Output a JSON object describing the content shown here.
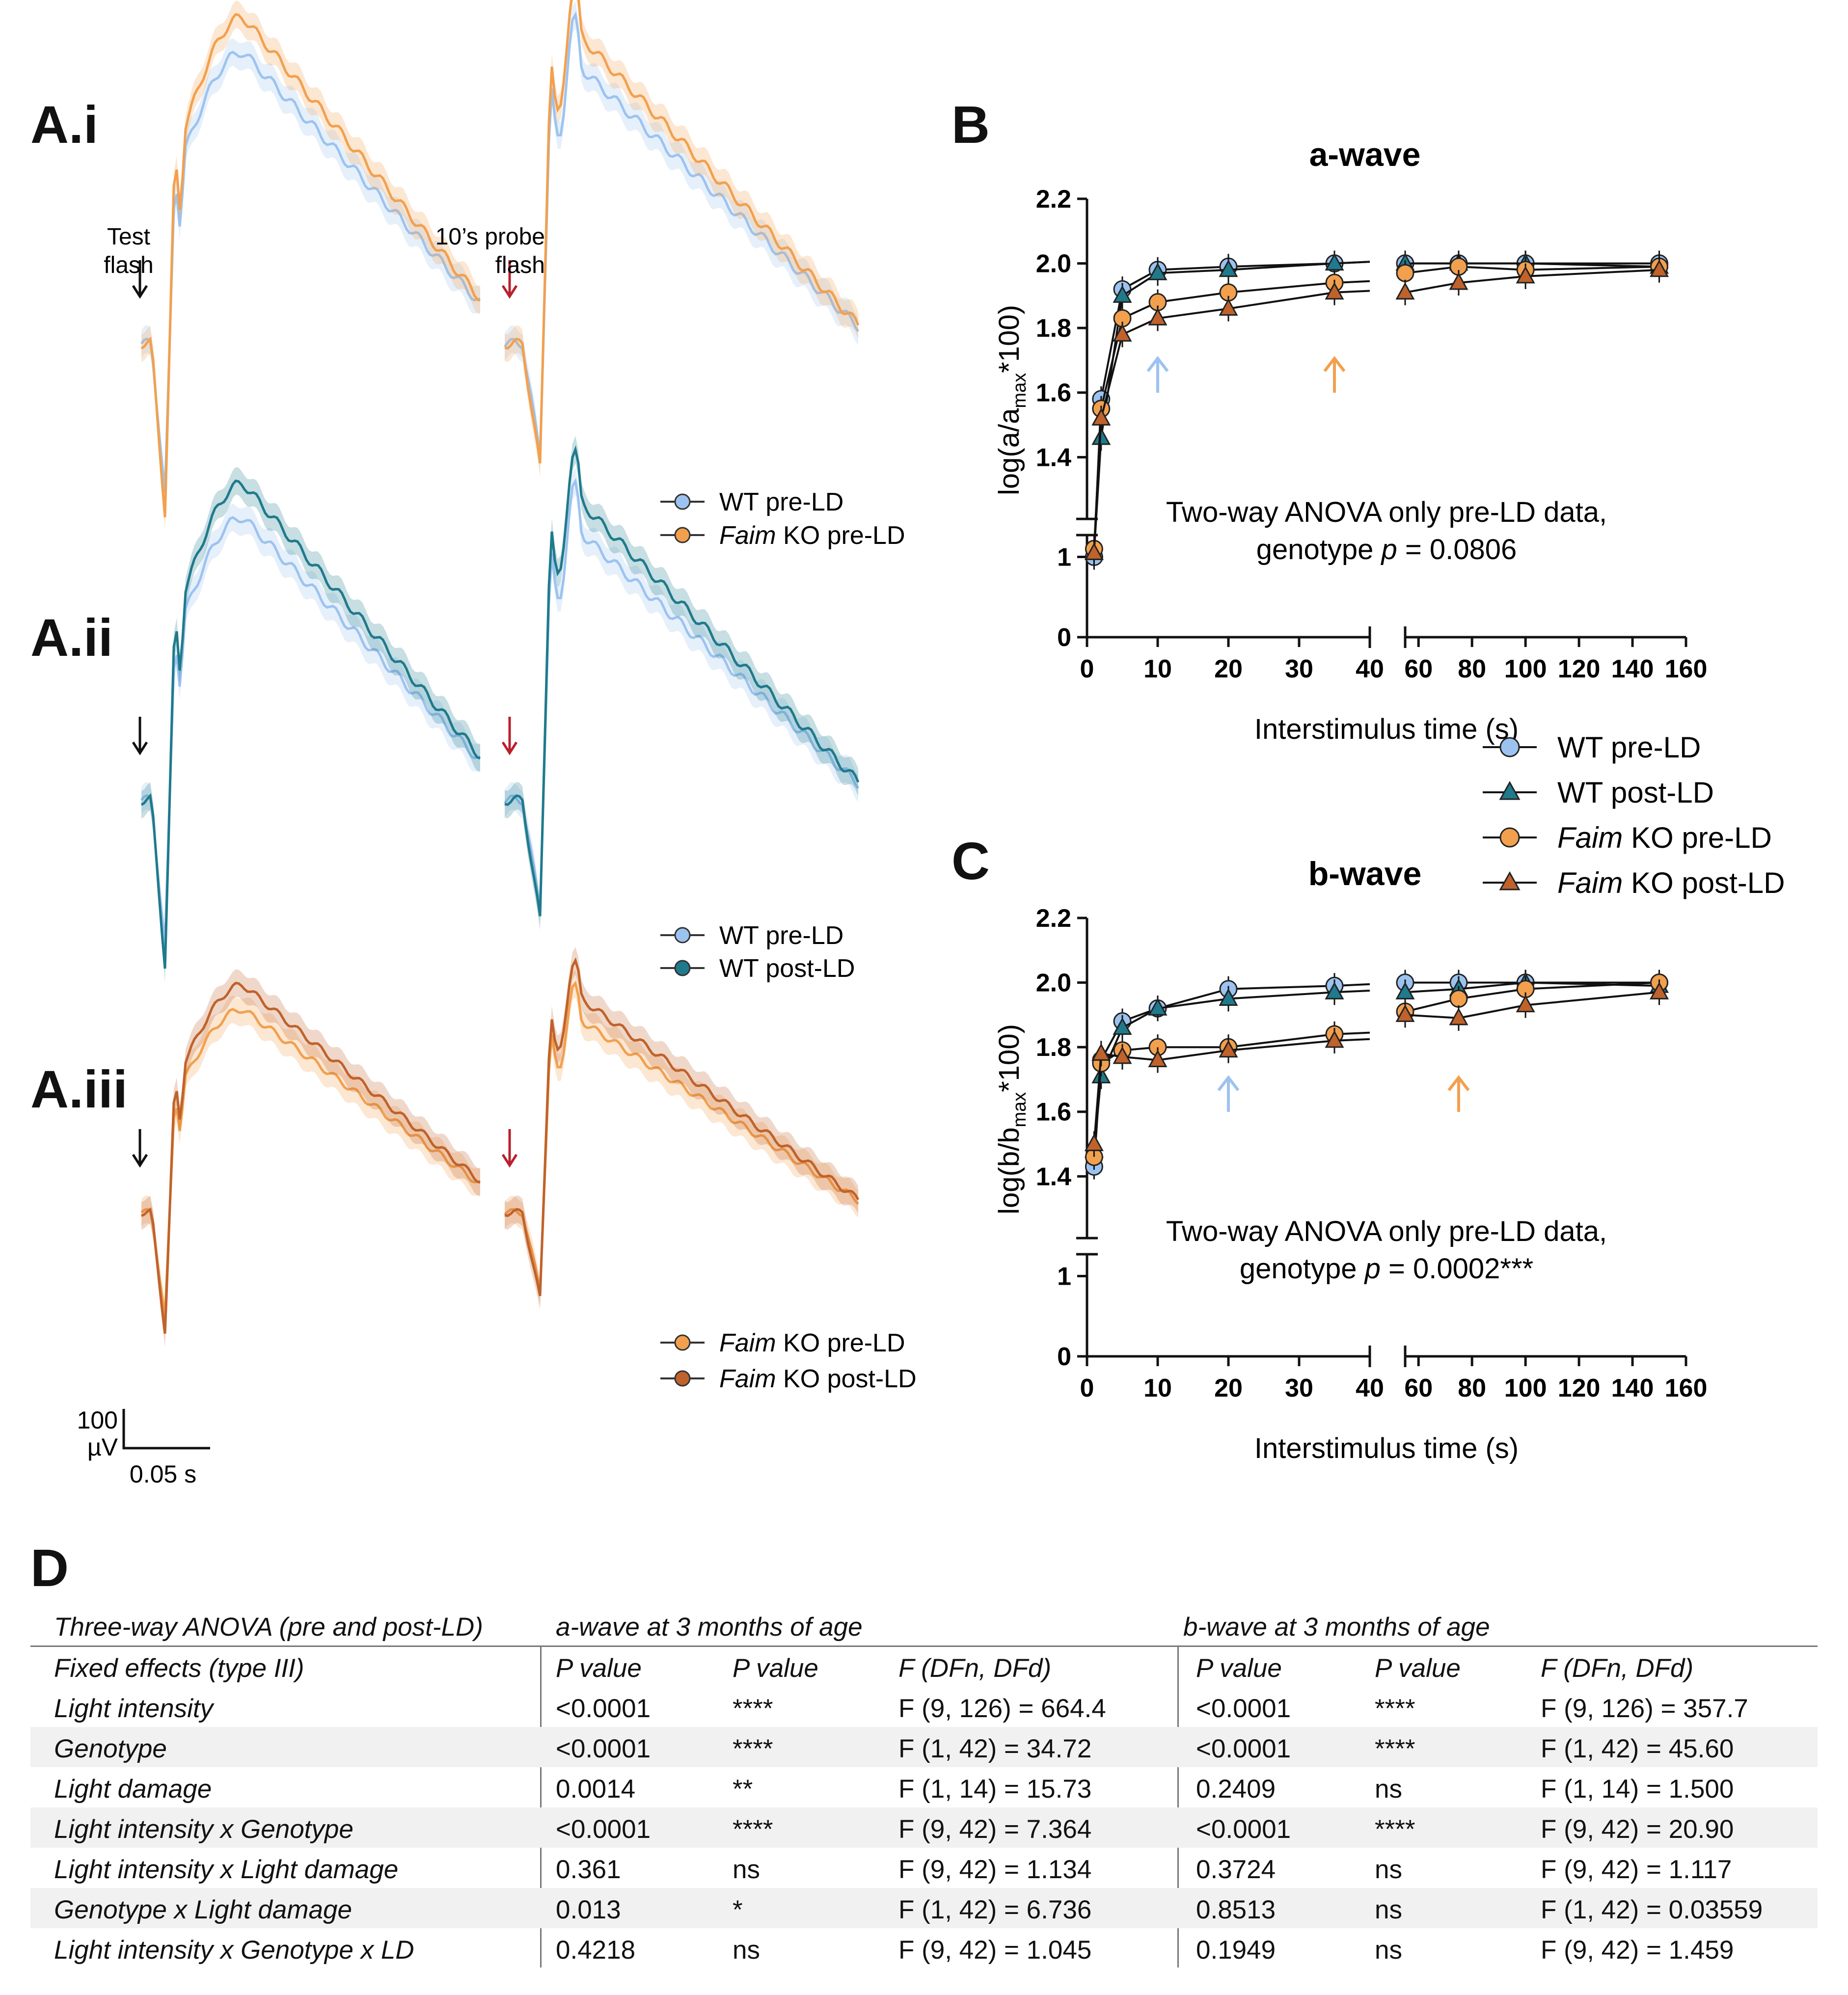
{
  "panel_labels": {
    "a_i": "A.i",
    "a_ii": "A.ii",
    "a_iii": "A.iii",
    "b": "B",
    "c": "C",
    "d": "D"
  },
  "traces": {
    "test_flash": [
      "Test",
      "flash"
    ],
    "probe_flash": [
      "10’s probe",
      "flash"
    ],
    "scale_amplitude": "100",
    "scale_unit": "µV",
    "scale_time": "0.05 s",
    "legend_ai": [
      {
        "name": "WT",
        "rest": " pre-LD"
      },
      {
        "name": "Faim",
        "rest": " KO pre-LD"
      }
    ],
    "legend_aii": [
      {
        "name": "WT",
        "rest": " pre-LD"
      },
      {
        "name": "WT",
        "rest": " post-LD"
      }
    ],
    "legend_aiii": [
      {
        "name": "Faim",
        "rest": " KO pre-LD"
      },
      {
        "name": "Faim",
        "rest": " KO post-LD"
      }
    ]
  },
  "colors": {
    "wt_pre": "#9cc3f0",
    "wt_post": "#1f7a8c",
    "ko_pre": "#f2a04e",
    "ko_post": "#c0622b",
    "arrow_red": "#b8202d",
    "arrow_black": "#111111"
  },
  "legend_bc": [
    {
      "name": "WT",
      "rest": " pre-LD",
      "marker": "circle",
      "color": "#9cc3f0"
    },
    {
      "name": "WT",
      "rest": " post-LD",
      "marker": "triangle",
      "color": "#1f7a8c"
    },
    {
      "name": "Faim",
      "rest": " KO pre-LD",
      "marker": "circle",
      "color": "#f2a04e"
    },
    {
      "name": "Faim",
      "rest": " KO post-LD",
      "marker": "triangle",
      "color": "#c0622b"
    }
  ],
  "chart_data": [
    {
      "type": "line",
      "title": "a-wave",
      "xlabel": "Interstimulus time (s)",
      "ylabel": "log(a/a",
      "ylabel_sub": "max",
      "ylabel_tail": "*100)",
      "x_axis_break": [
        40,
        55
      ],
      "y_axis_break": [
        1.2,
        1.3
      ],
      "xticks": [
        0,
        10,
        20,
        30,
        40,
        60,
        80,
        100,
        120,
        140,
        160
      ],
      "yticks_upper": [
        1.4,
        1.6,
        1.8,
        2.0,
        2.2
      ],
      "yticks_lower": [
        0,
        1
      ],
      "annotation": [
        "Two-way ANOVA only pre-LD data,",
        "genotype ",
        "p",
        " = 0.0806"
      ],
      "arrows": [
        {
          "x": 10,
          "color": "wt_pre"
        },
        {
          "x": 35,
          "color": "ko_pre"
        }
      ],
      "x": [
        1,
        2,
        5,
        10,
        20,
        35,
        55,
        75,
        100,
        150
      ],
      "series": [
        {
          "name": "WT pre-LD",
          "values": [
            1.0,
            1.58,
            1.92,
            1.98,
            1.99,
            2.0,
            2.0,
            2.0,
            2.0,
            2.0
          ]
        },
        {
          "name": "WT post-LD",
          "values": [
            1.05,
            1.46,
            1.9,
            1.97,
            1.98,
            2.0,
            2.0,
            2.0,
            2.0,
            1.99
          ]
        },
        {
          "name": "Faim KO pre-LD",
          "values": [
            1.1,
            1.55,
            1.83,
            1.88,
            1.91,
            1.94,
            1.97,
            1.99,
            1.98,
            1.99
          ]
        },
        {
          "name": "Faim KO post-LD",
          "values": [
            1.05,
            1.52,
            1.78,
            1.83,
            1.86,
            1.91,
            1.91,
            1.94,
            1.96,
            1.98
          ]
        }
      ]
    },
    {
      "type": "line",
      "title": "b-wave",
      "xlabel": "Interstimulus time (s)",
      "ylabel": "log(b/b",
      "ylabel_sub": "max",
      "ylabel_tail": "*100)",
      "x_axis_break": [
        40,
        55
      ],
      "y_axis_break": [
        1.2,
        1.3
      ],
      "xticks": [
        0,
        10,
        20,
        30,
        40,
        60,
        80,
        100,
        120,
        140,
        160
      ],
      "yticks_upper": [
        1.4,
        1.6,
        1.8,
        2.0,
        2.2
      ],
      "yticks_lower": [
        0,
        1
      ],
      "annotation": [
        "Two-way ANOVA only pre-LD data,",
        "genotype ",
        "p",
        " = 0.0002***"
      ],
      "arrows": [
        {
          "x": 20,
          "color": "wt_pre"
        },
        {
          "x": 75,
          "color": "ko_pre"
        }
      ],
      "x": [
        1,
        2,
        5,
        10,
        20,
        35,
        55,
        75,
        100,
        150
      ],
      "series": [
        {
          "name": "WT pre-LD",
          "values": [
            1.43,
            1.76,
            1.88,
            1.92,
            1.98,
            1.99,
            2.0,
            2.0,
            2.0,
            2.0
          ]
        },
        {
          "name": "WT post-LD",
          "values": [
            1.48,
            1.71,
            1.86,
            1.92,
            1.95,
            1.97,
            1.97,
            1.98,
            2.0,
            1.99
          ]
        },
        {
          "name": "Faim KO pre-LD",
          "values": [
            1.46,
            1.75,
            1.79,
            1.8,
            1.8,
            1.84,
            1.91,
            1.95,
            1.98,
            2.0
          ]
        },
        {
          "name": "Faim KO post-LD",
          "values": [
            1.5,
            1.78,
            1.77,
            1.76,
            1.79,
            1.82,
            1.9,
            1.89,
            1.93,
            1.97
          ]
        }
      ]
    }
  ],
  "table": {
    "label": "D",
    "header_left": "Three-way ANOVA (pre and post-LD)",
    "header_a": "a-wave at 3 months of age",
    "header_b": "b-wave at 3 months of age",
    "col_headers": [
      "Fixed effects (type III)",
      "P value",
      "P value",
      "F (DFn, DFd)",
      "P value",
      "P value",
      "F (DFn, DFd)"
    ],
    "rows": [
      [
        "Light intensity",
        "<0.0001",
        "****",
        "F (9, 126) = 664.4",
        "<0.0001",
        "****",
        "F (9, 126) = 357.7"
      ],
      [
        "Genotype",
        "<0.0001",
        "****",
        "F (1, 42) = 34.72",
        "<0.0001",
        "****",
        "F (1, 42) = 45.60"
      ],
      [
        "Light damage",
        "0.0014",
        "**",
        "F (1, 14) = 15.73",
        "0.2409",
        "ns",
        "F (1, 14) = 1.500"
      ],
      [
        "Light intensity x Genotype",
        "<0.0001",
        "****",
        "F (9, 42) = 7.364",
        "<0.0001",
        "****",
        "F (9, 42) = 20.90"
      ],
      [
        "Light intensity x Light damage",
        "0.361",
        "ns",
        "F (9, 42) = 1.134",
        "0.3724",
        "ns",
        "F (9, 42) = 1.117"
      ],
      [
        "Genotype x Light damage",
        "0.013",
        "*",
        "F (1, 42) = 6.736",
        "0.8513",
        "ns",
        "F (1, 42) = 0.03559"
      ],
      [
        "Light intensity x Genotype x LD",
        "0.4218",
        "ns",
        "F (9, 42) = 1.045",
        "0.1949",
        "ns",
        "F (9, 42) = 1.459"
      ]
    ]
  }
}
